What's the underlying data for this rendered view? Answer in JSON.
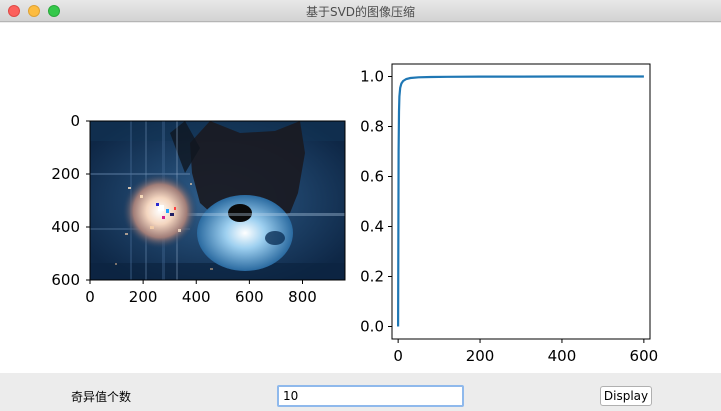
{
  "window": {
    "title": "基于SVD的图像压缩"
  },
  "image_plot": {
    "x_ticks": [
      "0",
      "200",
      "400",
      "600",
      "800"
    ],
    "y_ticks": [
      "0",
      "200",
      "400",
      "600"
    ]
  },
  "chart_data": {
    "type": "line",
    "x_ticks": [
      "0",
      "200",
      "400",
      "600"
    ],
    "y_ticks": [
      "0.0",
      "0.2",
      "0.4",
      "0.6",
      "0.8",
      "1.0"
    ],
    "xlim": [
      -15,
      615
    ],
    "ylim": [
      -0.05,
      1.05
    ],
    "grid": false,
    "series": [
      {
        "color": "#1f77b4",
        "x": [
          0,
          1,
          2,
          3,
          5,
          8,
          12,
          20,
          30,
          50,
          80,
          120,
          200,
          300,
          400,
          500,
          600
        ],
        "y": [
          0.0,
          0.7,
          0.86,
          0.92,
          0.955,
          0.972,
          0.982,
          0.99,
          0.994,
          0.997,
          0.998,
          0.999,
          0.9995,
          0.9998,
          0.9999,
          1.0,
          1.0
        ]
      }
    ]
  },
  "controls": {
    "sv_label": "奇异值个数",
    "sv_value": "10",
    "display_label": "Display"
  },
  "colors": {
    "line": "#1f77b4",
    "input_focus": "#8fb9ec"
  }
}
